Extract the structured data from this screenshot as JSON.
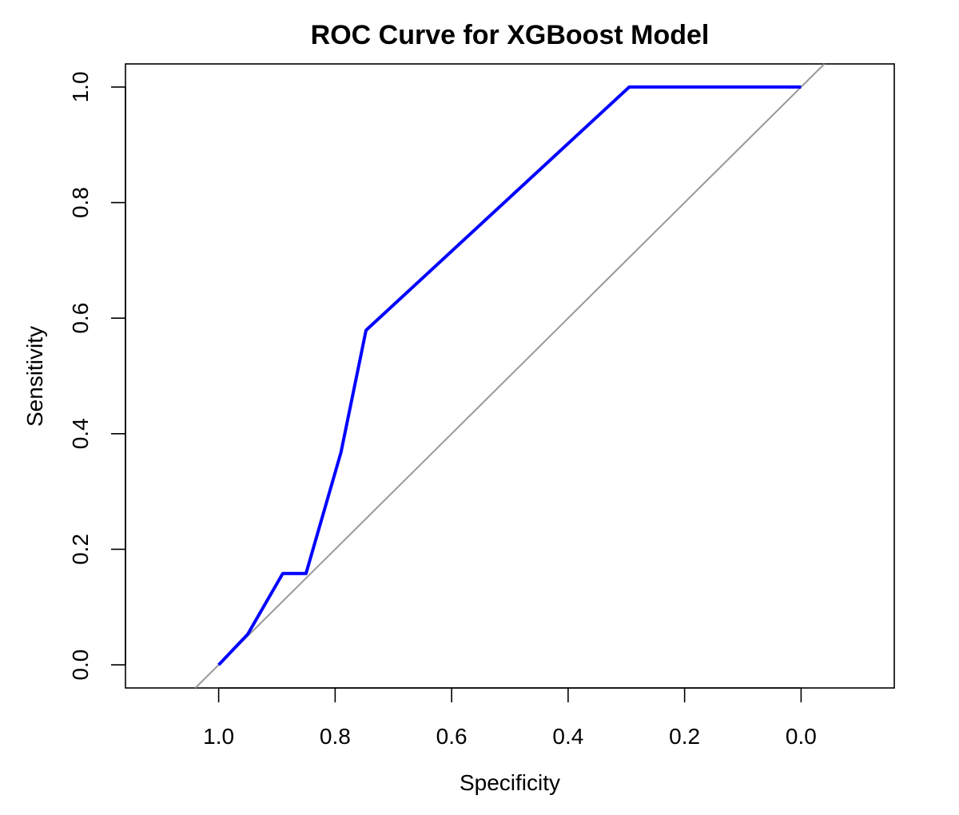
{
  "chart_data": {
    "type": "line",
    "title": "ROC Curve for XGBoost Model",
    "xlabel": "Specificity",
    "ylabel": "Sensitivity",
    "x_reversed": true,
    "xlim": [
      1.16,
      -0.16
    ],
    "ylim": [
      -0.04,
      1.04
    ],
    "xticks": [
      1.0,
      0.8,
      0.6,
      0.4,
      0.2,
      0.0
    ],
    "yticks": [
      0.0,
      0.2,
      0.4,
      0.6,
      0.8,
      1.0
    ],
    "xtick_labels": [
      "1.0",
      "0.8",
      "0.6",
      "0.4",
      "0.2",
      "0.0"
    ],
    "ytick_labels": [
      "0.0",
      "0.2",
      "0.4",
      "0.6",
      "0.8",
      "1.0"
    ],
    "grid": false,
    "reference_line": {
      "type": "diagonal",
      "color": "#999999"
    },
    "series": [
      {
        "color": "#0000ff",
        "points": [
          {
            "specificity": 1.0,
            "sensitivity": 0.0
          },
          {
            "specificity": 0.95,
            "sensitivity": 0.053
          },
          {
            "specificity": 0.89,
            "sensitivity": 0.158
          },
          {
            "specificity": 0.85,
            "sensitivity": 0.158
          },
          {
            "specificity": 0.79,
            "sensitivity": 0.368
          },
          {
            "specificity": 0.747,
            "sensitivity": 0.579
          },
          {
            "specificity": 0.295,
            "sensitivity": 1.0
          },
          {
            "specificity": 0.0,
            "sensitivity": 1.0
          }
        ]
      }
    ]
  }
}
